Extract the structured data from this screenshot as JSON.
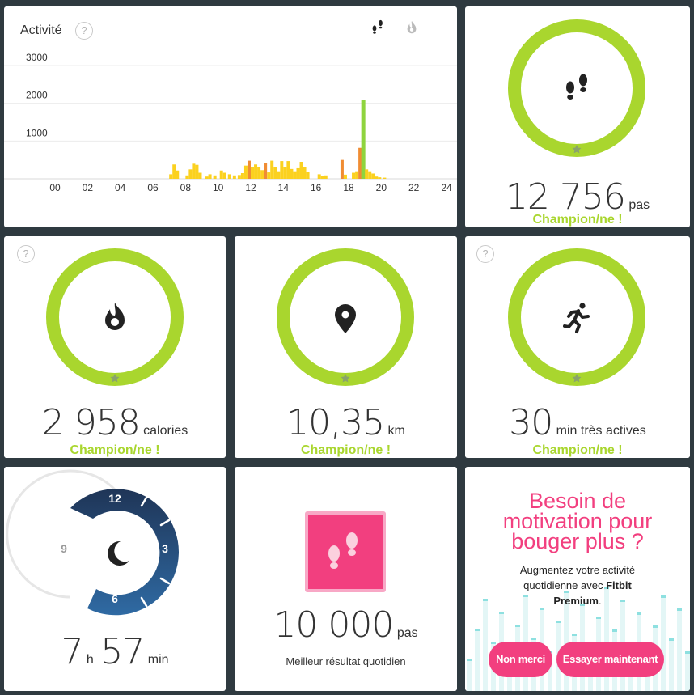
{
  "activity": {
    "title": "Activité",
    "help": "?",
    "y_ticks": [
      "3000",
      "2000",
      "1000"
    ],
    "x_ticks": [
      "00",
      "02",
      "04",
      "06",
      "08",
      "10",
      "12",
      "14",
      "16",
      "18",
      "20",
      "22",
      "24"
    ]
  },
  "chart_data": {
    "type": "bar",
    "title": "Activité",
    "xlabel": "",
    "ylabel": "",
    "ylim": [
      0,
      3000
    ],
    "xlim": [
      0,
      24
    ],
    "x_unit": "hour",
    "grid": true,
    "legend": "none",
    "bins": [
      {
        "x": 7.1,
        "y": 120,
        "c": "yellow"
      },
      {
        "x": 7.3,
        "y": 380,
        "c": "yellow"
      },
      {
        "x": 7.5,
        "y": 220,
        "c": "yellow"
      },
      {
        "x": 8.1,
        "y": 90,
        "c": "yellow"
      },
      {
        "x": 8.3,
        "y": 250,
        "c": "yellow"
      },
      {
        "x": 8.5,
        "y": 400,
        "c": "yellow"
      },
      {
        "x": 8.7,
        "y": 370,
        "c": "yellow"
      },
      {
        "x": 8.9,
        "y": 160,
        "c": "yellow"
      },
      {
        "x": 9.3,
        "y": 60,
        "c": "yellow"
      },
      {
        "x": 9.5,
        "y": 120,
        "c": "yellow"
      },
      {
        "x": 9.8,
        "y": 90,
        "c": "yellow"
      },
      {
        "x": 10.2,
        "y": 220,
        "c": "yellow"
      },
      {
        "x": 10.4,
        "y": 160,
        "c": "yellow"
      },
      {
        "x": 10.7,
        "y": 120,
        "c": "yellow"
      },
      {
        "x": 11.0,
        "y": 90,
        "c": "yellow"
      },
      {
        "x": 11.3,
        "y": 100,
        "c": "yellow"
      },
      {
        "x": 11.5,
        "y": 150,
        "c": "yellow"
      },
      {
        "x": 11.7,
        "y": 350,
        "c": "yellow"
      },
      {
        "x": 11.9,
        "y": 480,
        "c": "orange"
      },
      {
        "x": 12.1,
        "y": 300,
        "c": "yellow"
      },
      {
        "x": 12.3,
        "y": 380,
        "c": "yellow"
      },
      {
        "x": 12.5,
        "y": 320,
        "c": "yellow"
      },
      {
        "x": 12.7,
        "y": 230,
        "c": "yellow"
      },
      {
        "x": 12.9,
        "y": 420,
        "c": "orange"
      },
      {
        "x": 13.1,
        "y": 170,
        "c": "yellow"
      },
      {
        "x": 13.3,
        "y": 480,
        "c": "yellow"
      },
      {
        "x": 13.5,
        "y": 300,
        "c": "yellow"
      },
      {
        "x": 13.7,
        "y": 200,
        "c": "yellow"
      },
      {
        "x": 13.9,
        "y": 470,
        "c": "yellow"
      },
      {
        "x": 14.1,
        "y": 300,
        "c": "yellow"
      },
      {
        "x": 14.3,
        "y": 470,
        "c": "yellow"
      },
      {
        "x": 14.5,
        "y": 260,
        "c": "yellow"
      },
      {
        "x": 14.7,
        "y": 200,
        "c": "yellow"
      },
      {
        "x": 14.9,
        "y": 280,
        "c": "yellow"
      },
      {
        "x": 15.1,
        "y": 450,
        "c": "yellow"
      },
      {
        "x": 15.3,
        "y": 300,
        "c": "yellow"
      },
      {
        "x": 15.5,
        "y": 190,
        "c": "yellow"
      },
      {
        "x": 16.2,
        "y": 120,
        "c": "yellow"
      },
      {
        "x": 16.4,
        "y": 80,
        "c": "yellow"
      },
      {
        "x": 16.6,
        "y": 90,
        "c": "yellow"
      },
      {
        "x": 17.6,
        "y": 500,
        "c": "orange"
      },
      {
        "x": 17.8,
        "y": 110,
        "c": "yellow"
      },
      {
        "x": 18.3,
        "y": 160,
        "c": "yellow"
      },
      {
        "x": 18.5,
        "y": 200,
        "c": "yellow"
      },
      {
        "x": 18.7,
        "y": 820,
        "c": "orange"
      },
      {
        "x": 18.9,
        "y": 2100,
        "c": "green"
      },
      {
        "x": 19.1,
        "y": 250,
        "c": "yellow"
      },
      {
        "x": 19.3,
        "y": 200,
        "c": "yellow"
      },
      {
        "x": 19.5,
        "y": 140,
        "c": "yellow"
      },
      {
        "x": 19.7,
        "y": 60,
        "c": "yellow"
      },
      {
        "x": 19.9,
        "y": 40,
        "c": "yellow"
      },
      {
        "x": 20.2,
        "y": 30,
        "c": "yellow"
      }
    ]
  },
  "colors": {
    "ring": "#a9d62e",
    "champion": "#a9d62e",
    "bar_yellow": "#fbd11f",
    "bar_orange": "#f08c33",
    "bar_green": "#8fd43e",
    "promo_pink": "#f23f7f",
    "sleep_top": "#1f3557",
    "sleep_bottom": "#2f6aa3"
  },
  "steps": {
    "value": "12 756",
    "unit": "pas",
    "status": "Champion/ne !",
    "icon": "footsteps-icon"
  },
  "calories": {
    "value": "2 958",
    "unit": "calories",
    "status": "Champion/ne !",
    "icon": "flame-icon"
  },
  "distance": {
    "value": "10,35",
    "unit": "km",
    "status": "Champion/ne !",
    "icon": "map-pin-icon"
  },
  "active": {
    "value": "30",
    "unit": "min très actives",
    "status": "Champion/ne !",
    "icon": "runner-icon"
  },
  "sleep": {
    "hours": "7",
    "h_unit": "h",
    "minutes": "57",
    "m_unit": "min",
    "clock_labels": {
      "l12": "12",
      "l3": "3",
      "l6": "6",
      "l9": "9"
    },
    "icon": "moon-icon"
  },
  "best": {
    "value": "10 000",
    "unit": "pas",
    "label": "Meilleur résultat quotidien",
    "icon": "footsteps-icon"
  },
  "promo": {
    "headline_1": "Besoin de",
    "headline_2": "motivation pour",
    "headline_3": "bouger plus ?",
    "body_1": "Augmentez votre activité",
    "body_2": "quotidienne avec ",
    "brand_1": "Fitbit",
    "brand_2": "Premium",
    "body_end": ".",
    "no_label": "Non merci",
    "try_label": "Essayer maintenant"
  }
}
